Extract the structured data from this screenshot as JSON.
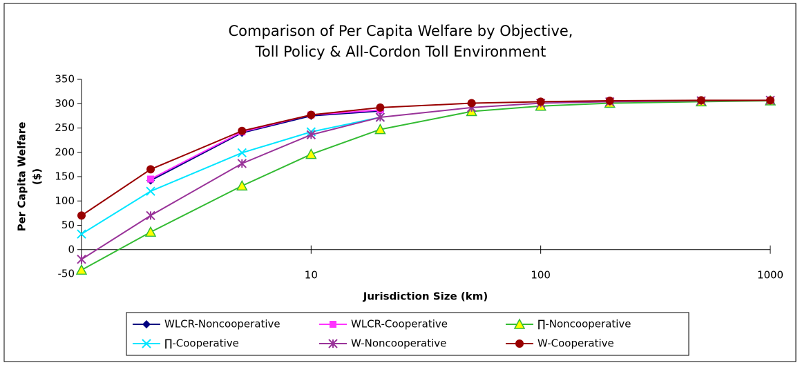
{
  "chart_data": {
    "type": "line",
    "title": [
      "Comparison of Per Capita Welfare by Objective,",
      "Toll Policy & All-Cordon Toll Environment"
    ],
    "x_label": "Jurisdiction Size (km)",
    "y_label": [
      "Per Capita Welfare",
      "($)"
    ],
    "x": [
      1,
      2,
      5,
      10,
      20,
      50,
      100,
      200,
      500,
      1000
    ],
    "xlim": [
      1,
      1000
    ],
    "xticks": [
      10,
      100,
      1000
    ],
    "log_x": true,
    "ylim": [
      -50,
      350
    ],
    "yticks": [
      350,
      300,
      250,
      200,
      150,
      100,
      50,
      0,
      -50
    ],
    "grid": false,
    "legend": "bottom",
    "series": [
      {
        "name": "WLCR-Noncooperative",
        "color": "#000080",
        "marker": "diamond",
        "values": [
          null,
          142,
          240,
          275,
          285,
          null,
          null,
          null,
          null,
          null
        ]
      },
      {
        "name": "WLCR-Cooperative",
        "color": "#ff33ff",
        "marker": "square",
        "values": [
          null,
          145,
          242,
          277,
          287,
          null,
          null,
          null,
          null,
          null
        ]
      },
      {
        "name": "∏-Noncooperative",
        "color": "#33bb33",
        "marker": "triangle",
        "values": [
          -42,
          36,
          131,
          196,
          247,
          284,
          295,
          301,
          304,
          306
        ]
      },
      {
        "name": "∏-Cooperative",
        "color": "#00e5ff",
        "marker": "x",
        "values": [
          32,
          120,
          199,
          242,
          272,
          null,
          null,
          null,
          null,
          null
        ]
      },
      {
        "name": "W-Noncooperative",
        "color": "#993399",
        "marker": "star",
        "values": [
          -20,
          70,
          177,
          236,
          272,
          292,
          301,
          304,
          306,
          307
        ]
      },
      {
        "name": "W-Cooperative",
        "color": "#990000",
        "marker": "circle",
        "values": [
          70,
          165,
          244,
          277,
          292,
          301,
          304,
          306,
          307,
          307
        ]
      }
    ]
  }
}
